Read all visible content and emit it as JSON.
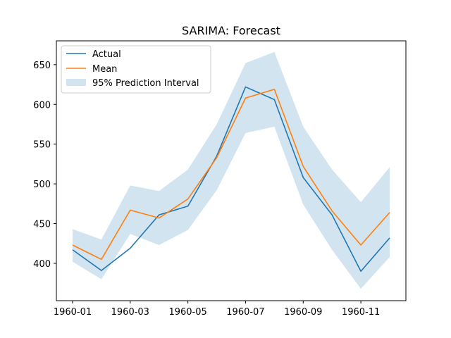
{
  "chart_data": {
    "type": "line",
    "title": "SARIMA: Forecast",
    "xlabel": "",
    "ylabel": "",
    "x": [
      "1960-01",
      "1960-02",
      "1960-03",
      "1960-04",
      "1960-05",
      "1960-06",
      "1960-07",
      "1960-08",
      "1960-09",
      "1960-10",
      "1960-11",
      "1960-12"
    ],
    "x_tick_labels": [
      "1960-01",
      "1960-03",
      "1960-05",
      "1960-07",
      "1960-09",
      "1960-11"
    ],
    "y_ticks": [
      400,
      450,
      500,
      550,
      600,
      650
    ],
    "ylim": [
      353,
      680
    ],
    "series": [
      {
        "name": "Actual",
        "color": "#1f77b4",
        "values": [
          417,
          391,
          419,
          461,
          472,
          535,
          622,
          606,
          508,
          461,
          390,
          432
        ]
      },
      {
        "name": "Mean",
        "color": "#ff7f0e",
        "values": [
          423,
          405,
          467,
          457,
          481,
          533,
          608,
          619,
          522,
          466,
          423,
          464
        ]
      }
    ],
    "interval": {
      "name": "95% Prediction Interval",
      "color": "#1f77b4",
      "lower": [
        402,
        380,
        437,
        423,
        442,
        492,
        564,
        572,
        474,
        417,
        368,
        408
      ],
      "upper": [
        443,
        430,
        498,
        491,
        518,
        575,
        652,
        666,
        572,
        518,
        477,
        521
      ]
    },
    "legend": {
      "position": "top-left",
      "entries": [
        "Actual",
        "Mean",
        "95% Prediction Interval"
      ]
    },
    "grid": false
  }
}
